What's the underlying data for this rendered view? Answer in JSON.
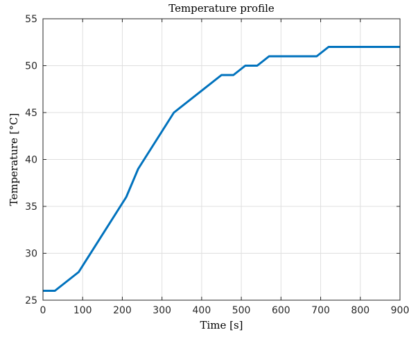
{
  "chart_data": {
    "type": "line",
    "title": "Temperature profile",
    "xlabel": "Time [s]",
    "ylabel": "Temperature [°C]",
    "xlim": [
      0,
      900
    ],
    "ylim": [
      25,
      55
    ],
    "x_ticks": [
      0,
      100,
      200,
      300,
      400,
      500,
      600,
      700,
      800,
      900
    ],
    "y_ticks": [
      25,
      30,
      35,
      40,
      45,
      50,
      55
    ],
    "grid": true,
    "legend": "none",
    "series": [
      {
        "color": "#0072bd",
        "points": [
          [
            0,
            26
          ],
          [
            30,
            26
          ],
          [
            90,
            28
          ],
          [
            210,
            36
          ],
          [
            240,
            39
          ],
          [
            330,
            45
          ],
          [
            450,
            49
          ],
          [
            480,
            49
          ],
          [
            510,
            50
          ],
          [
            540,
            50
          ],
          [
            570,
            51
          ],
          [
            690,
            51
          ],
          [
            720,
            52
          ],
          [
            900,
            52
          ]
        ]
      }
    ]
  }
}
